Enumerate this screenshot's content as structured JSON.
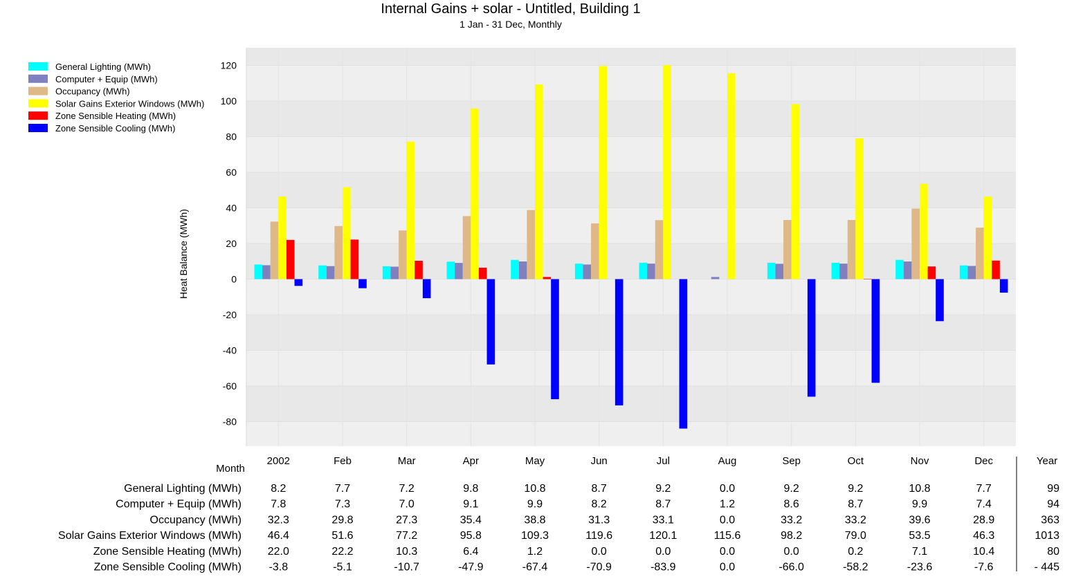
{
  "chart_data": {
    "type": "bar",
    "title": "Internal Gains + solar - Untitled, Building 1",
    "subtitle": "1 Jan - 31 Dec, Monthly",
    "xlabel": "Month",
    "ylabel": "Heat Balance (MWh)",
    "ylim": [
      -95,
      128
    ],
    "yticks": [
      120,
      100,
      80,
      60,
      40,
      20,
      0,
      -20,
      -40,
      -60,
      -80
    ],
    "grid": true,
    "legend_position": "top-left",
    "categories": [
      "2002",
      "Feb",
      "Mar",
      "Apr",
      "May",
      "Jun",
      "Jul",
      "Aug",
      "Sep",
      "Oct",
      "Nov",
      "Dec"
    ],
    "total_label": "Year",
    "series": [
      {
        "name": "General Lighting (MWh)",
        "color": "#00ffff",
        "values": [
          8.2,
          7.7,
          7.2,
          9.8,
          10.8,
          8.7,
          9.2,
          0.0,
          9.2,
          9.2,
          10.8,
          7.7
        ],
        "total": "99"
      },
      {
        "name": "Computer + Equip (MWh)",
        "color": "#8080c0",
        "values": [
          7.8,
          7.3,
          7.0,
          9.1,
          9.9,
          8.2,
          8.7,
          1.2,
          8.6,
          8.7,
          9.9,
          7.4
        ],
        "total": "94"
      },
      {
        "name": "Occupancy (MWh)",
        "color": "#deb887",
        "values": [
          32.3,
          29.8,
          27.3,
          35.4,
          38.8,
          31.3,
          33.1,
          0.0,
          33.2,
          33.2,
          39.6,
          28.9
        ],
        "total": "363"
      },
      {
        "name": "Solar Gains Exterior Windows (MWh)",
        "color": "#ffff00",
        "values": [
          46.4,
          51.6,
          77.2,
          95.8,
          109.3,
          119.6,
          120.1,
          115.6,
          98.2,
          79.0,
          53.5,
          46.3
        ],
        "total": "1013"
      },
      {
        "name": "Zone Sensible Heating (MWh)",
        "color": "#ff0000",
        "values": [
          22.0,
          22.2,
          10.3,
          6.4,
          1.2,
          0.0,
          0.0,
          0.0,
          0.0,
          0.2,
          7.1,
          10.4
        ],
        "total": "80"
      },
      {
        "name": "Zone Sensible Cooling (MWh)",
        "color": "#0000ff",
        "values": [
          -3.8,
          -5.1,
          -10.7,
          -47.9,
          -67.4,
          -70.9,
          -83.9,
          0.0,
          -66.0,
          -58.2,
          -23.6,
          -7.6
        ],
        "total": "- 445"
      }
    ]
  }
}
